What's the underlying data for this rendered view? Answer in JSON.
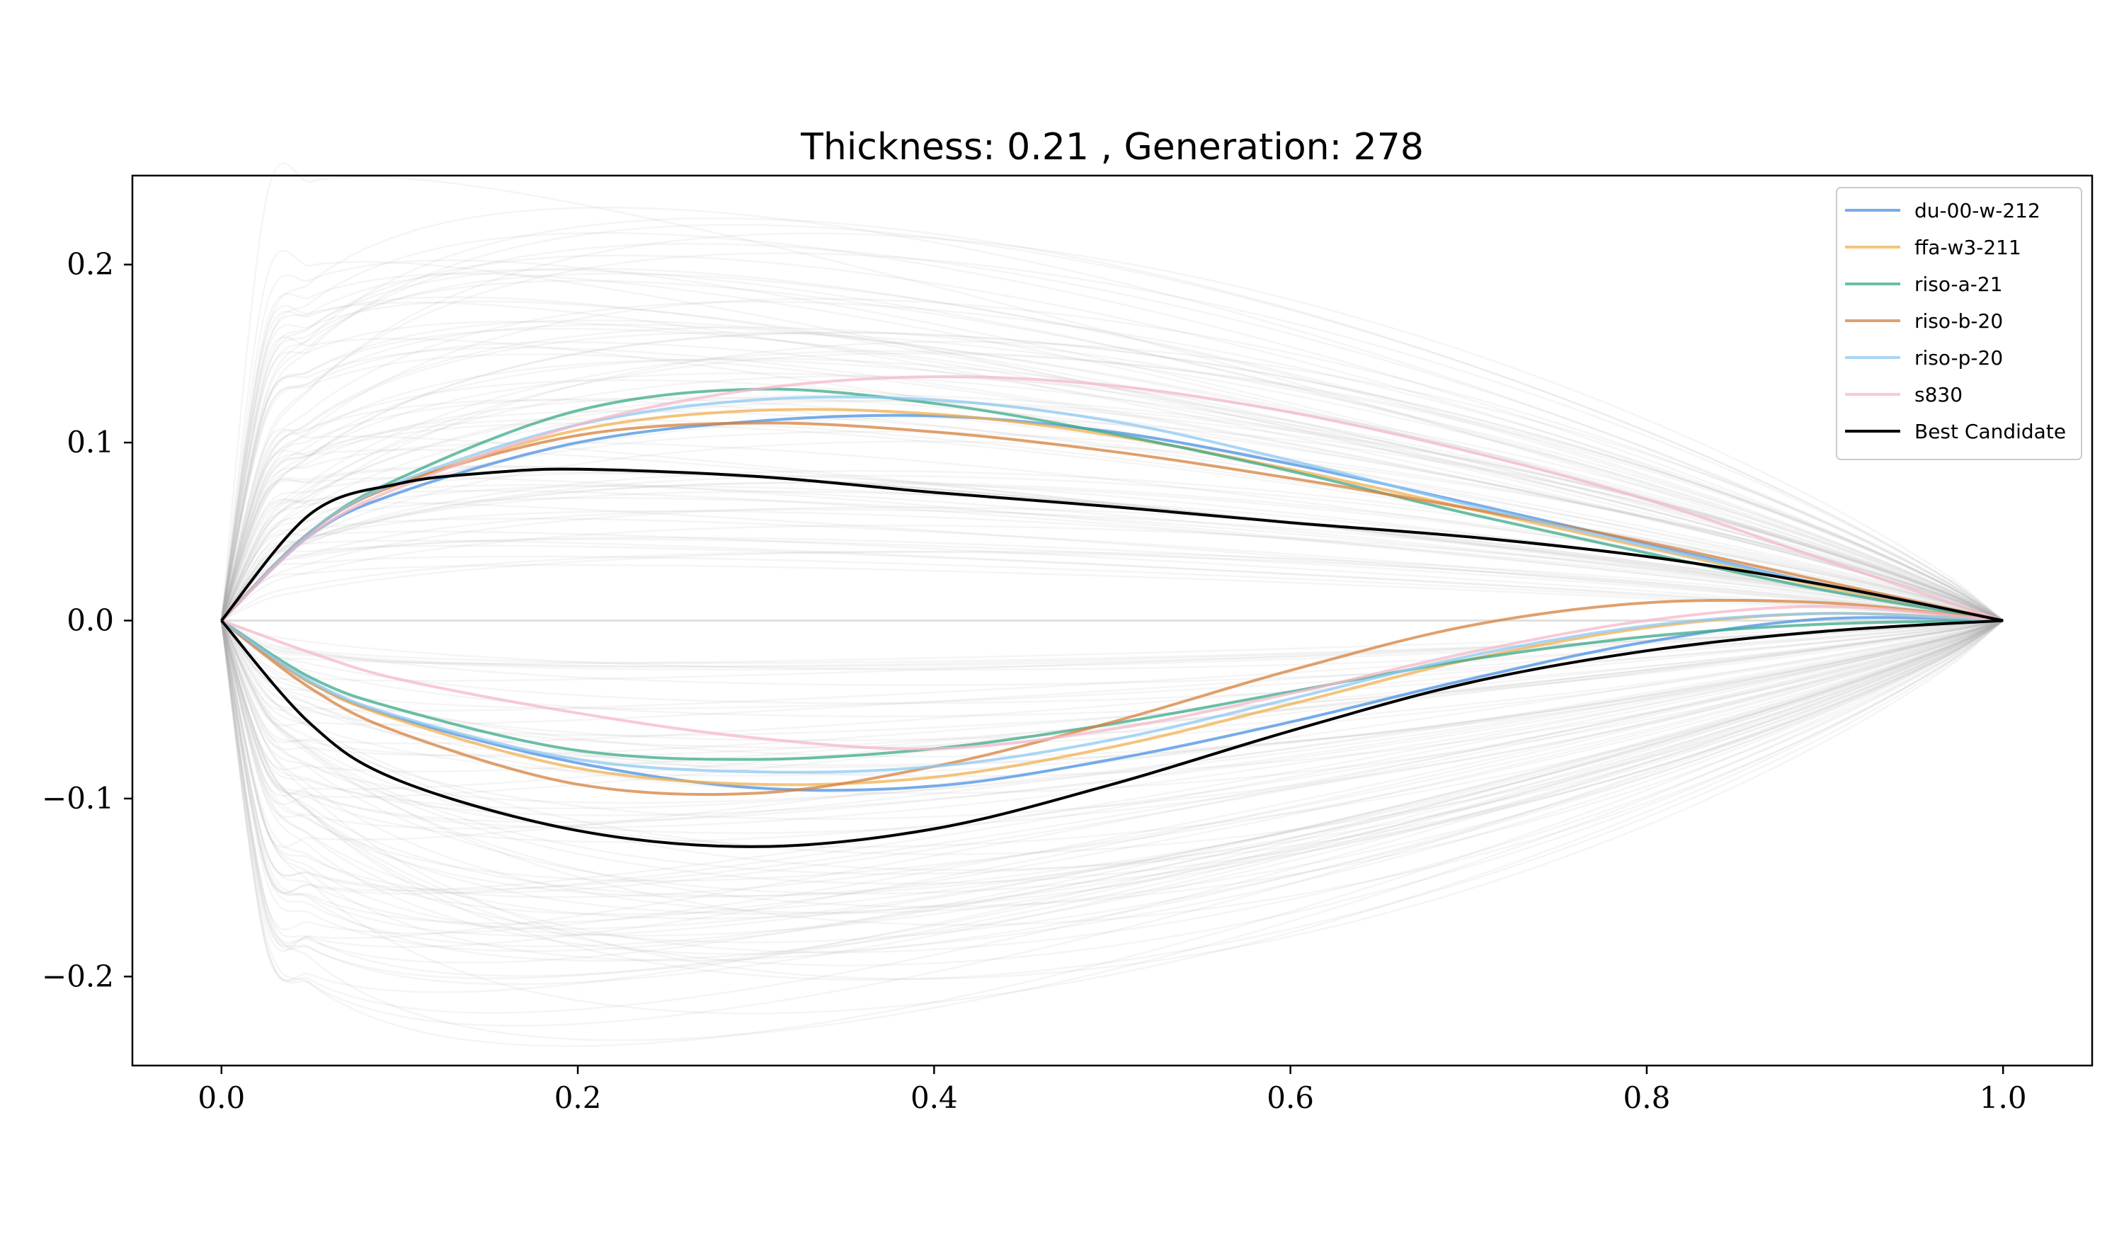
{
  "chart_data": {
    "type": "line",
    "title": "Thickness: 0.21 , Generation: 278",
    "xlabel": "",
    "ylabel": "",
    "xlim": [
      -0.05,
      1.05
    ],
    "ylim": [
      -0.25,
      0.25
    ],
    "xticks": [
      0.0,
      0.2,
      0.4,
      0.6,
      0.8,
      1.0
    ],
    "xtick_labels": [
      "0.0",
      "0.2",
      "0.4",
      "0.6",
      "0.8",
      "1.0"
    ],
    "yticks": [
      -0.2,
      -0.1,
      0.0,
      0.1,
      0.2
    ],
    "ytick_labels": [
      "−0.2",
      "−0.1",
      "0.0",
      "0.1",
      "0.2"
    ],
    "grid": false,
    "legend_position": "top-right",
    "background_population": {
      "description": "faint grey candidate airfoil outlines",
      "color": "#b0b0b0"
    },
    "series": [
      {
        "name": "du-00-w-212",
        "color": "#4a90e2",
        "upper": {
          "x": [
            0,
            0.05,
            0.1,
            0.2,
            0.3,
            0.4,
            0.5,
            0.6,
            0.7,
            0.8,
            0.9,
            1.0
          ],
          "y": [
            0,
            0.048,
            0.072,
            0.1,
            0.112,
            0.115,
            0.106,
            0.088,
            0.066,
            0.043,
            0.02,
            0.0
          ]
        },
        "lower": {
          "x": [
            0,
            0.05,
            0.1,
            0.2,
            0.3,
            0.4,
            0.5,
            0.6,
            0.7,
            0.8,
            0.9,
            1.0
          ],
          "y": [
            0,
            -0.035,
            -0.055,
            -0.08,
            -0.094,
            -0.093,
            -0.078,
            -0.057,
            -0.033,
            -0.012,
            0.001,
            0.0
          ]
        }
      },
      {
        "name": "ffa-w3-211",
        "color": "#f0b050",
        "upper": {
          "x": [
            0,
            0.05,
            0.1,
            0.2,
            0.3,
            0.4,
            0.5,
            0.6,
            0.7,
            0.8,
            0.9,
            1.0
          ],
          "y": [
            0,
            0.05,
            0.077,
            0.107,
            0.118,
            0.116,
            0.104,
            0.085,
            0.063,
            0.041,
            0.019,
            0.0
          ]
        },
        "lower": {
          "x": [
            0,
            0.05,
            0.1,
            0.2,
            0.3,
            0.4,
            0.5,
            0.6,
            0.7,
            0.8,
            0.9,
            1.0
          ],
          "y": [
            0,
            -0.035,
            -0.056,
            -0.083,
            -0.092,
            -0.088,
            -0.071,
            -0.047,
            -0.022,
            -0.004,
            0.004,
            0.0
          ]
        }
      },
      {
        "name": "riso-a-21",
        "color": "#3aaa88",
        "upper": {
          "x": [
            0,
            0.05,
            0.1,
            0.2,
            0.3,
            0.4,
            0.5,
            0.6,
            0.7,
            0.8,
            0.9,
            1.0
          ],
          "y": [
            0,
            0.05,
            0.08,
            0.118,
            0.13,
            0.122,
            0.105,
            0.084,
            0.06,
            0.038,
            0.017,
            0.0
          ]
        },
        "lower": {
          "x": [
            0,
            0.05,
            0.1,
            0.2,
            0.3,
            0.4,
            0.5,
            0.6,
            0.7,
            0.8,
            0.9,
            1.0
          ],
          "y": [
            0,
            -0.032,
            -0.05,
            -0.073,
            -0.078,
            -0.072,
            -0.058,
            -0.04,
            -0.022,
            -0.009,
            -0.002,
            0.0
          ]
        }
      },
      {
        "name": "riso-b-20",
        "color": "#d4803c",
        "upper": {
          "x": [
            0,
            0.05,
            0.1,
            0.2,
            0.3,
            0.4,
            0.5,
            0.6,
            0.7,
            0.8,
            0.9,
            1.0
          ],
          "y": [
            0,
            0.05,
            0.077,
            0.104,
            0.111,
            0.106,
            0.095,
            0.08,
            0.063,
            0.044,
            0.022,
            0.0
          ]
        },
        "lower": {
          "x": [
            0,
            0.05,
            0.1,
            0.2,
            0.3,
            0.4,
            0.5,
            0.6,
            0.7,
            0.8,
            0.9,
            1.0
          ],
          "y": [
            0,
            -0.038,
            -0.063,
            -0.092,
            -0.097,
            -0.082,
            -0.057,
            -0.028,
            -0.003,
            0.01,
            0.01,
            0.0
          ]
        }
      },
      {
        "name": "riso-p-20",
        "color": "#8ec8f2",
        "upper": {
          "x": [
            0,
            0.05,
            0.1,
            0.2,
            0.3,
            0.4,
            0.5,
            0.6,
            0.7,
            0.8,
            0.9,
            1.0
          ],
          "y": [
            0,
            0.05,
            0.078,
            0.11,
            0.124,
            0.124,
            0.112,
            0.09,
            0.065,
            0.042,
            0.02,
            0.0
          ]
        },
        "lower": {
          "x": [
            0,
            0.05,
            0.1,
            0.2,
            0.3,
            0.4,
            0.5,
            0.6,
            0.7,
            0.8,
            0.9,
            1.0
          ],
          "y": [
            0,
            -0.034,
            -0.054,
            -0.078,
            -0.085,
            -0.082,
            -0.067,
            -0.044,
            -0.02,
            -0.003,
            0.004,
            0.0
          ]
        }
      },
      {
        "name": "s830",
        "color": "#f4b8c8",
        "upper": {
          "x": [
            0,
            0.05,
            0.1,
            0.2,
            0.3,
            0.4,
            0.5,
            0.6,
            0.7,
            0.8,
            0.9,
            1.0
          ],
          "y": [
            0,
            0.048,
            0.075,
            0.11,
            0.13,
            0.137,
            0.132,
            0.117,
            0.095,
            0.068,
            0.034,
            0.0
          ]
        },
        "lower": {
          "x": [
            0,
            0.05,
            0.1,
            0.2,
            0.3,
            0.4,
            0.5,
            0.6,
            0.7,
            0.8,
            0.9,
            1.0
          ],
          "y": [
            0,
            -0.018,
            -0.033,
            -0.052,
            -0.066,
            -0.072,
            -0.061,
            -0.041,
            -0.018,
            0.0,
            0.008,
            0.0
          ]
        }
      },
      {
        "name": "Best Candidate",
        "color": "#000000",
        "upper": {
          "x": [
            0,
            0.05,
            0.1,
            0.15,
            0.2,
            0.3,
            0.4,
            0.5,
            0.6,
            0.7,
            0.8,
            0.9,
            1.0
          ],
          "y": [
            0,
            0.06,
            0.077,
            0.083,
            0.085,
            0.081,
            0.072,
            0.064,
            0.055,
            0.047,
            0.036,
            0.02,
            0.0
          ]
        },
        "lower": {
          "x": [
            0,
            0.05,
            0.1,
            0.2,
            0.3,
            0.4,
            0.5,
            0.6,
            0.7,
            0.8,
            0.9,
            1.0
          ],
          "y": [
            0,
            -0.058,
            -0.09,
            -0.118,
            -0.127,
            -0.117,
            -0.092,
            -0.062,
            -0.035,
            -0.017,
            -0.006,
            0.0
          ]
        }
      }
    ]
  }
}
